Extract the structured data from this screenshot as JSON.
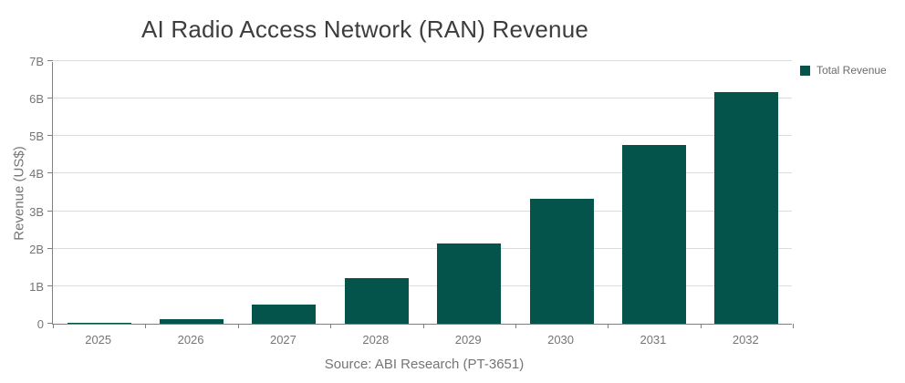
{
  "chart_data": {
    "type": "bar",
    "title": "AI Radio Access Network (RAN) Revenue",
    "categories": [
      "2025",
      "2026",
      "2027",
      "2028",
      "2029",
      "2030",
      "2031",
      "2032"
    ],
    "series": [
      {
        "name": "Total Revenue",
        "values": [
          0.02,
          0.13,
          0.5,
          1.21,
          2.13,
          3.33,
          4.76,
          6.17
        ]
      }
    ],
    "xlabel": "",
    "ylabel": "Revenue (US$)",
    "ylim": [
      0,
      7
    ],
    "ytick_values": [
      0,
      1,
      2,
      3,
      4,
      5,
      6,
      7
    ],
    "ytick_labels": [
      "0",
      "1B",
      "2B",
      "3B",
      "4B",
      "5B",
      "6B",
      "7B"
    ],
    "grid": "horizontal",
    "legend_position": "top-right",
    "source_note": "Source: ABI Research (PT-3651)"
  },
  "legend": {
    "items": [
      {
        "label": "Total Revenue",
        "color": "#05544c"
      }
    ]
  },
  "colors": {
    "bar": "#05544c",
    "axis_line": "#808080",
    "gridline": "#dcdcdc",
    "tick_label": "#757575",
    "title": "#3d3d3d",
    "background": "#ffffff"
  }
}
